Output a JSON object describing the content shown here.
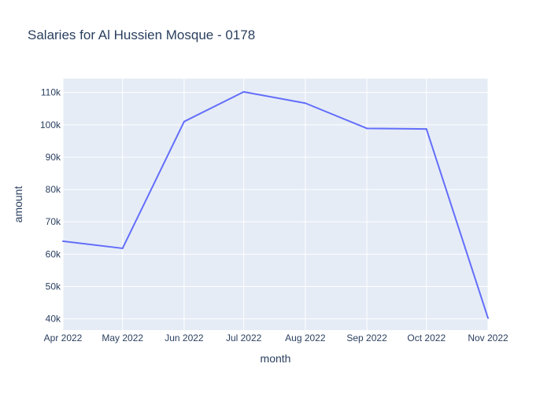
{
  "chart_data": {
    "type": "line",
    "title": "Salaries for Al Hussien Mosque - 0178",
    "xlabel": "month",
    "ylabel": "amount",
    "categories": [
      "Apr 2022",
      "May 2022",
      "Jun 2022",
      "Jul 2022",
      "Aug 2022",
      "Sep 2022",
      "Oct 2022",
      "Nov 2022"
    ],
    "x": [
      "2022-04-01",
      "2022-05-01",
      "2022-06-01",
      "2022-07-01",
      "2022-08-01",
      "2022-09-01",
      "2022-10-01",
      "2022-11-01"
    ],
    "values": [
      64000,
      61800,
      101000,
      110200,
      106700,
      98900,
      98700,
      40200
    ],
    "yticks": [
      40000,
      50000,
      60000,
      70000,
      80000,
      90000,
      100000,
      110000
    ],
    "yticklabels": [
      "40k",
      "50k",
      "60k",
      "70k",
      "80k",
      "90k",
      "100k",
      "110k"
    ],
    "ylim": [
      36500,
      114300
    ],
    "grid": true,
    "legend": "none",
    "colors": {
      "line": "#636efa",
      "plot_bg": "#e5ecf6",
      "grid": "#ffffff",
      "text": "#2a3f5f"
    }
  }
}
